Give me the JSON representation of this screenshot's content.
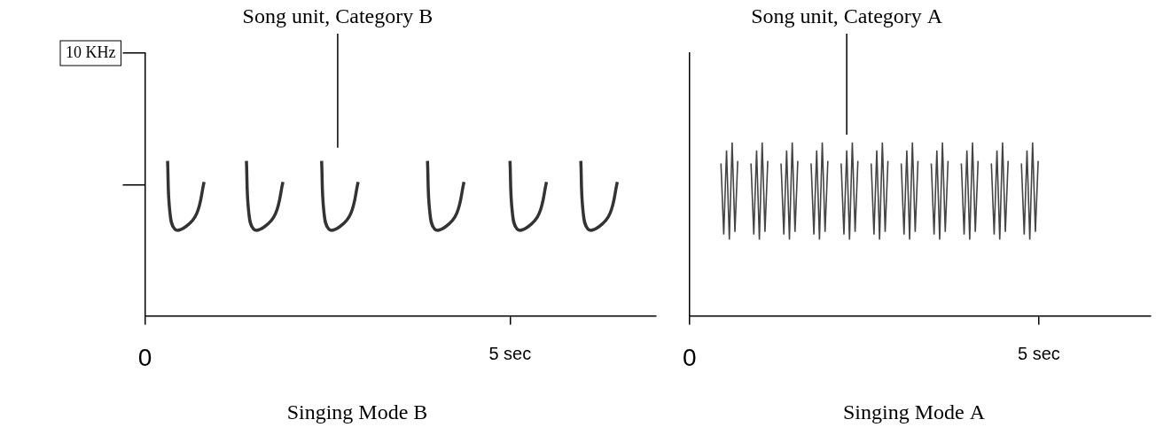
{
  "chart_data": [
    {
      "type": "line",
      "title": "Singing Mode B",
      "color": "#333333",
      "line_style": "smooth",
      "grid": false,
      "tick_labels": true,
      "annotation": {
        "text": "Song unit, Category B",
        "x": 2.64,
        "y": 6.4
      },
      "xlim": [
        0,
        7
      ],
      "xticks": [
        0,
        {
          "value": 5,
          "label": "5 sec"
        }
      ],
      "ylim": [
        0,
        10
      ],
      "yticks": [
        {
          "value": 5,
          "label": null
        },
        {
          "value": 10,
          "label": "10 KHz"
        }
      ],
      "series": [
        {
          "x": [
            0.31,
            0.34,
            0.41,
            0.56,
            0.71,
            0.81
          ],
          "values": [
            5.9,
            4.0,
            3.3,
            3.4,
            3.9,
            5.1
          ]
        },
        {
          "x": [
            1.39,
            1.42,
            1.49,
            1.64,
            1.79,
            1.89
          ],
          "values": [
            5.9,
            4.0,
            3.3,
            3.4,
            3.9,
            5.1
          ]
        },
        {
          "x": [
            2.42,
            2.45,
            2.52,
            2.67,
            2.82,
            2.92
          ],
          "values": [
            5.9,
            4.0,
            3.3,
            3.4,
            3.9,
            5.1
          ]
        },
        {
          "x": [
            3.87,
            3.9,
            3.97,
            4.12,
            4.27,
            4.37
          ],
          "values": [
            5.9,
            4.0,
            3.3,
            3.4,
            3.9,
            5.1
          ]
        },
        {
          "x": [
            5.0,
            5.03,
            5.1,
            5.25,
            5.4,
            5.5
          ],
          "values": [
            5.9,
            4.0,
            3.3,
            3.4,
            3.9,
            5.1
          ]
        },
        {
          "x": [
            5.97,
            6.0,
            6.07,
            6.22,
            6.37,
            6.47
          ],
          "values": [
            5.9,
            4.0,
            3.3,
            3.4,
            3.9,
            5.1
          ]
        }
      ]
    },
    {
      "type": "line",
      "title": "Singing Mode A",
      "color": "#444444",
      "line_style": "solid",
      "grid": false,
      "tick_labels": "x",
      "annotation": {
        "text": "Song unit, Category A",
        "x": 2.25,
        "y": 6.9
      },
      "xlim": [
        0,
        6.6
      ],
      "xticks": [
        0,
        {
          "value": 5,
          "label": "5 sec"
        }
      ],
      "ylim": [
        0,
        10
      ],
      "series": [
        {
          "x": [
            0.45,
            0.49,
            0.53,
            0.57,
            0.61,
            0.65,
            0.69
          ],
          "values": [
            5.8,
            3.1,
            6.3,
            2.9,
            6.6,
            3.2,
            5.9
          ]
        },
        {
          "x": [
            0.88,
            0.92,
            0.96,
            1.0,
            1.04,
            1.08,
            1.12
          ],
          "values": [
            5.8,
            3.1,
            6.3,
            2.9,
            6.6,
            3.2,
            5.9
          ]
        },
        {
          "x": [
            1.31,
            1.35,
            1.39,
            1.43,
            1.47,
            1.51,
            1.55
          ],
          "values": [
            5.8,
            3.1,
            6.3,
            2.9,
            6.6,
            3.2,
            5.9
          ]
        },
        {
          "x": [
            1.74,
            1.78,
            1.82,
            1.86,
            1.9,
            1.94,
            1.98
          ],
          "values": [
            5.8,
            3.1,
            6.3,
            2.9,
            6.6,
            3.2,
            5.9
          ]
        },
        {
          "x": [
            2.17,
            2.21,
            2.25,
            2.29,
            2.33,
            2.37,
            2.41
          ],
          "values": [
            5.8,
            3.1,
            6.3,
            2.9,
            6.6,
            3.2,
            5.9
          ]
        },
        {
          "x": [
            2.6,
            2.64,
            2.68,
            2.72,
            2.76,
            2.8,
            2.84
          ],
          "values": [
            5.8,
            3.1,
            6.3,
            2.9,
            6.6,
            3.2,
            5.9
          ]
        },
        {
          "x": [
            3.03,
            3.07,
            3.11,
            3.15,
            3.19,
            3.23,
            3.27
          ],
          "values": [
            5.8,
            3.1,
            6.3,
            2.9,
            6.6,
            3.2,
            5.9
          ]
        },
        {
          "x": [
            3.46,
            3.5,
            3.54,
            3.58,
            3.62,
            3.66,
            3.7
          ],
          "values": [
            5.8,
            3.1,
            6.3,
            2.9,
            6.6,
            3.2,
            5.9
          ]
        },
        {
          "x": [
            3.89,
            3.93,
            3.97,
            4.01,
            4.05,
            4.09,
            4.13
          ],
          "values": [
            5.8,
            3.1,
            6.3,
            2.9,
            6.6,
            3.2,
            5.9
          ]
        },
        {
          "x": [
            4.32,
            4.36,
            4.4,
            4.44,
            4.48,
            4.52,
            4.56
          ],
          "values": [
            5.8,
            3.1,
            6.3,
            2.9,
            6.6,
            3.2,
            5.9
          ]
        },
        {
          "x": [
            4.75,
            4.79,
            4.83,
            4.87,
            4.91,
            4.95,
            4.99
          ],
          "values": [
            5.8,
            3.1,
            6.3,
            2.9,
            6.6,
            3.2,
            5.9
          ]
        }
      ]
    }
  ]
}
